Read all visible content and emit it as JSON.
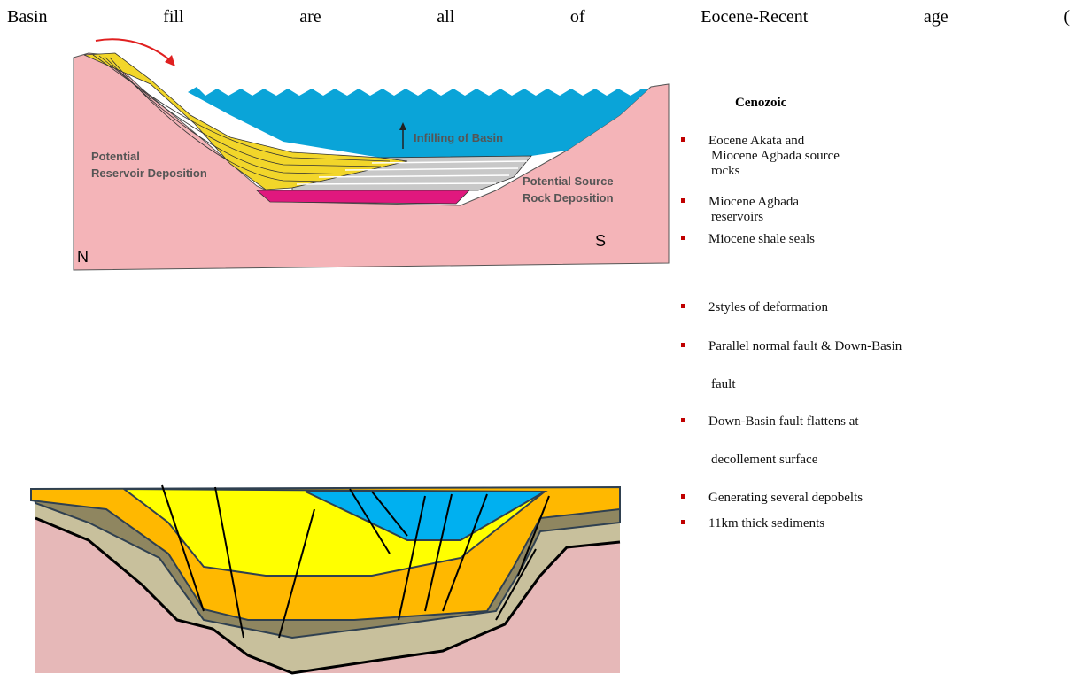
{
  "header": {
    "text": "Basin fill are all of Eocene-Recent age ("
  },
  "top_diagram": {
    "infill_label": "Infilling of Basin",
    "reservoir_label": [
      "Potential",
      "Reservoir Deposition"
    ],
    "source_label": [
      "Potential Source",
      "Rock Deposition"
    ],
    "north": "N",
    "south": "S"
  },
  "cenozoic": {
    "title": "Cenozoic",
    "items": [
      [
        "Eocene Akata and",
        "Miocene Agbada source",
        "rocks"
      ],
      [
        "Miocene Agbada",
        "reservoirs"
      ],
      [
        "Miocene shale seals"
      ]
    ]
  },
  "deformation": {
    "items": [
      [
        "2styles of deformation"
      ],
      [
        "Parallel normal fault & Down-Basin",
        "fault"
      ],
      [
        "Down-Basin fault flattens at",
        "decollement surface"
      ],
      [
        "Generating several depobelts"
      ],
      [
        "11km thick sediments"
      ]
    ]
  }
}
